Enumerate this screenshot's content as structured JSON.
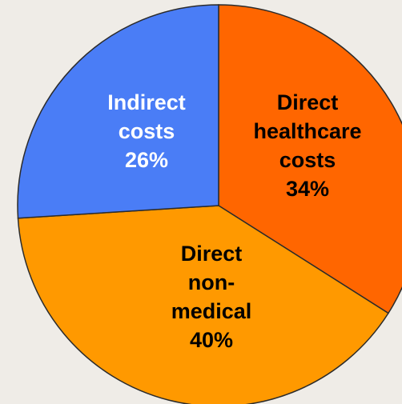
{
  "chart_data": {
    "type": "pie",
    "categories": [
      "Direct healthcare costs",
      "Direct non-medical",
      "Indirect costs"
    ],
    "values": [
      34,
      40,
      26
    ],
    "value_labels": [
      "34%",
      "40%",
      "26%"
    ],
    "colors": [
      "#ff6600",
      "#ff9900",
      "#4a7df6"
    ]
  }
}
